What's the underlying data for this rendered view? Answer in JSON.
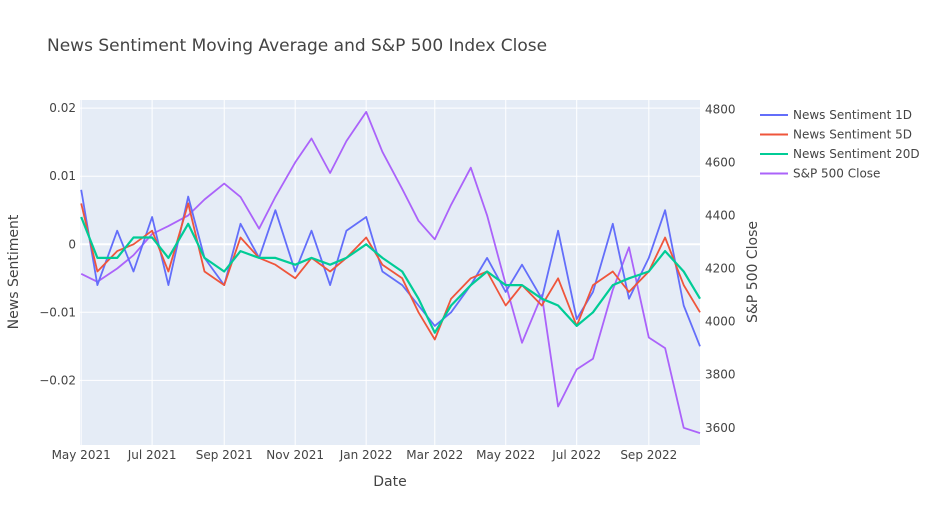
{
  "chart_data": {
    "type": "line",
    "title": "News Sentiment Moving Average and S&P 500 Index Close",
    "xlabel": "Date",
    "ylabel": "News Sentiment",
    "y2label": "S&P 500 Close",
    "xlim": [
      "2021-04-30",
      "2022-10-15"
    ],
    "ylim": [
      -0.0295,
      0.0212
    ],
    "y2lim": [
      3535,
      4835
    ],
    "x_ticks": [
      "May 2021",
      "Jul 2021",
      "Sep 2021",
      "Nov 2021",
      "Jan 2022",
      "Mar 2022",
      "May 2022",
      "Jul 2022",
      "Sep 2022"
    ],
    "x_tick_dates": [
      "2021-05-01",
      "2021-07-01",
      "2021-09-01",
      "2021-11-01",
      "2022-01-01",
      "2022-03-01",
      "2022-05-01",
      "2022-07-01",
      "2022-09-01"
    ],
    "y_ticks": [
      "0.02",
      "0.01",
      "0",
      "−0.01",
      "−0.02"
    ],
    "y_tick_values": [
      0.02,
      0.01,
      0,
      -0.01,
      -0.02
    ],
    "y2_ticks": [
      "4800",
      "4600",
      "4400",
      "4200",
      "4000",
      "3800",
      "3600"
    ],
    "y2_tick_values": [
      4800,
      4600,
      4400,
      4200,
      4000,
      3800,
      3600
    ],
    "grid": true,
    "legend_position": "right",
    "series": [
      {
        "name": "News Sentiment 1D",
        "color": "#636efa",
        "axis": "y",
        "x": [
          "2021-05-01",
          "2021-05-15",
          "2021-06-01",
          "2021-06-15",
          "2021-07-01",
          "2021-07-15",
          "2021-08-01",
          "2021-08-15",
          "2021-09-01",
          "2021-09-15",
          "2021-10-01",
          "2021-10-15",
          "2021-11-01",
          "2021-11-15",
          "2021-12-01",
          "2021-12-15",
          "2022-01-01",
          "2022-01-15",
          "2022-02-01",
          "2022-02-15",
          "2022-03-01",
          "2022-03-15",
          "2022-04-01",
          "2022-04-15",
          "2022-05-01",
          "2022-05-15",
          "2022-06-01",
          "2022-06-15",
          "2022-07-01",
          "2022-07-15",
          "2022-08-01",
          "2022-08-15",
          "2022-09-01",
          "2022-09-15",
          "2022-10-01",
          "2022-10-15"
        ],
        "values": [
          0.008,
          -0.006,
          0.002,
          -0.004,
          0.004,
          -0.006,
          0.007,
          -0.002,
          -0.006,
          0.003,
          -0.002,
          0.005,
          -0.004,
          0.002,
          -0.006,
          0.002,
          0.004,
          -0.004,
          -0.006,
          -0.009,
          -0.012,
          -0.01,
          -0.006,
          -0.002,
          -0.007,
          -0.003,
          -0.008,
          0.002,
          -0.011,
          -0.007,
          0.003,
          -0.008,
          -0.002,
          0.005,
          -0.009,
          -0.015
        ]
      },
      {
        "name": "News Sentiment 5D",
        "color": "#ef553b",
        "axis": "y",
        "x": [
          "2021-05-01",
          "2021-05-15",
          "2021-06-01",
          "2021-06-15",
          "2021-07-01",
          "2021-07-15",
          "2021-08-01",
          "2021-08-15",
          "2021-09-01",
          "2021-09-15",
          "2021-10-01",
          "2021-10-15",
          "2021-11-01",
          "2021-11-15",
          "2021-12-01",
          "2021-12-15",
          "2022-01-01",
          "2022-01-15",
          "2022-02-01",
          "2022-02-15",
          "2022-03-01",
          "2022-03-15",
          "2022-04-01",
          "2022-04-15",
          "2022-05-01",
          "2022-05-15",
          "2022-06-01",
          "2022-06-15",
          "2022-07-01",
          "2022-07-15",
          "2022-08-01",
          "2022-08-15",
          "2022-09-01",
          "2022-09-15",
          "2022-10-01",
          "2022-10-15"
        ],
        "values": [
          0.006,
          -0.004,
          -0.001,
          0.0,
          0.002,
          -0.004,
          0.006,
          -0.004,
          -0.006,
          0.001,
          -0.002,
          -0.003,
          -0.005,
          -0.002,
          -0.004,
          -0.002,
          0.001,
          -0.003,
          -0.005,
          -0.01,
          -0.014,
          -0.008,
          -0.005,
          -0.004,
          -0.009,
          -0.006,
          -0.009,
          -0.005,
          -0.012,
          -0.006,
          -0.004,
          -0.007,
          -0.004,
          0.001,
          -0.006,
          -0.01
        ]
      },
      {
        "name": "News Sentiment 20D",
        "color": "#00cc96",
        "axis": "y",
        "x": [
          "2021-05-01",
          "2021-05-15",
          "2021-06-01",
          "2021-06-15",
          "2021-07-01",
          "2021-07-15",
          "2021-08-01",
          "2021-08-15",
          "2021-09-01",
          "2021-09-15",
          "2021-10-01",
          "2021-10-15",
          "2021-11-01",
          "2021-11-15",
          "2021-12-01",
          "2021-12-15",
          "2022-01-01",
          "2022-01-15",
          "2022-02-01",
          "2022-02-15",
          "2022-03-01",
          "2022-03-15",
          "2022-04-01",
          "2022-04-15",
          "2022-05-01",
          "2022-05-15",
          "2022-06-01",
          "2022-06-15",
          "2022-07-01",
          "2022-07-15",
          "2022-08-01",
          "2022-08-15",
          "2022-09-01",
          "2022-09-15",
          "2022-10-01",
          "2022-10-15"
        ],
        "values": [
          0.004,
          -0.002,
          -0.002,
          0.001,
          0.001,
          -0.002,
          0.003,
          -0.002,
          -0.004,
          -0.001,
          -0.002,
          -0.002,
          -0.003,
          -0.002,
          -0.003,
          -0.002,
          0.0,
          -0.002,
          -0.004,
          -0.008,
          -0.013,
          -0.009,
          -0.006,
          -0.004,
          -0.006,
          -0.006,
          -0.008,
          -0.009,
          -0.012,
          -0.01,
          -0.006,
          -0.005,
          -0.004,
          -0.001,
          -0.004,
          -0.008
        ]
      },
      {
        "name": "S&P 500 Close",
        "color": "#ab63fa",
        "axis": "y2",
        "x": [
          "2021-05-01",
          "2021-05-15",
          "2021-06-01",
          "2021-06-15",
          "2021-07-01",
          "2021-07-15",
          "2021-08-01",
          "2021-08-15",
          "2021-09-01",
          "2021-09-15",
          "2021-10-01",
          "2021-10-15",
          "2021-11-01",
          "2021-11-15",
          "2021-12-01",
          "2021-12-15",
          "2022-01-01",
          "2022-01-15",
          "2022-02-01",
          "2022-02-15",
          "2022-03-01",
          "2022-03-15",
          "2022-04-01",
          "2022-04-15",
          "2022-05-01",
          "2022-05-15",
          "2022-06-01",
          "2022-06-15",
          "2022-07-01",
          "2022-07-15",
          "2022-08-01",
          "2022-08-15",
          "2022-09-01",
          "2022-09-15",
          "2022-10-01",
          "2022-10-15"
        ],
        "values": [
          4180,
          4150,
          4200,
          4250,
          4330,
          4360,
          4400,
          4460,
          4520,
          4470,
          4350,
          4470,
          4600,
          4690,
          4560,
          4680,
          4790,
          4640,
          4500,
          4380,
          4310,
          4440,
          4580,
          4400,
          4140,
          3920,
          4100,
          3680,
          3820,
          3860,
          4120,
          4280,
          3940,
          3900,
          3600,
          3580
        ]
      }
    ],
    "legend": [
      "News Sentiment 1D",
      "News Sentiment 5D",
      "News Sentiment 20D",
      "S&P 500 Close"
    ]
  }
}
